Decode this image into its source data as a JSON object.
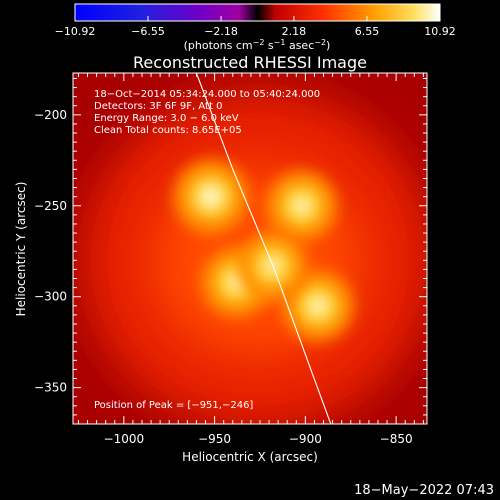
{
  "chart_data": {
    "type": "heatmap",
    "title": "Reconstructed RHESSI Image",
    "xlabel": "Heliocentric X (arcsec)",
    "ylabel": "Heliocentric Y (arcsec)",
    "xlim": [
      -1028,
      -833
    ],
    "ylim": [
      -370,
      -177
    ],
    "x_ticks": [
      -1000,
      -950,
      -900,
      -850
    ],
    "x_tick_labels": [
      "−1000",
      "−950",
      "−900",
      "−850"
    ],
    "y_ticks": [
      -200,
      -250,
      -300,
      -350
    ],
    "y_tick_labels": [
      "−200",
      "−250",
      "−300",
      "−350"
    ],
    "colorbar": {
      "range": [
        -10.92,
        10.92
      ],
      "ticks": [
        -10.92,
        -6.55,
        -2.18,
        2.18,
        6.55,
        10.92
      ],
      "tick_labels": [
        "−10.92",
        "−6.55",
        "−2.18",
        "2.18",
        "6.55",
        "10.92"
      ],
      "unit_main": "(photons cm",
      "unit_exp1": "−2",
      "unit_mid": " s",
      "unit_exp2": "−1",
      "unit_end": " asec",
      "unit_exp3": "−2",
      "unit_close": ")"
    },
    "info_lines": [
      "18−Oct−2014 05:34:24.000 to 05:40:24.000",
      "Detectors: 3F 6F 9F, Att 0",
      "Energy Range: 3.0 − 6.0 keV",
      "Clean    Total counts: 8.65E+05"
    ],
    "peak_label": "Position of Peak = [−951,−246]",
    "peak": [
      -951,
      -246
    ],
    "sources": [
      {
        "x": -952,
        "y": -245,
        "intensity": 1.0
      },
      {
        "x": -902,
        "y": -250,
        "intensity": 0.82
      },
      {
        "x": -938,
        "y": -292,
        "intensity": 0.8
      },
      {
        "x": -893,
        "y": -305,
        "intensity": 0.85
      },
      {
        "x": -918,
        "y": -283,
        "intensity": 0.78
      }
    ],
    "limb": [
      [
        -960,
        -177
      ],
      [
        -940,
        -230
      ],
      [
        -917,
        -285
      ],
      [
        -897,
        -340
      ],
      [
        -886,
        -370
      ]
    ],
    "colors": {
      "background": "#000000",
      "text": "#ffffff",
      "limb": "#ffffff"
    }
  },
  "footer": {
    "timestamp": "18−May−2022 07:43"
  }
}
